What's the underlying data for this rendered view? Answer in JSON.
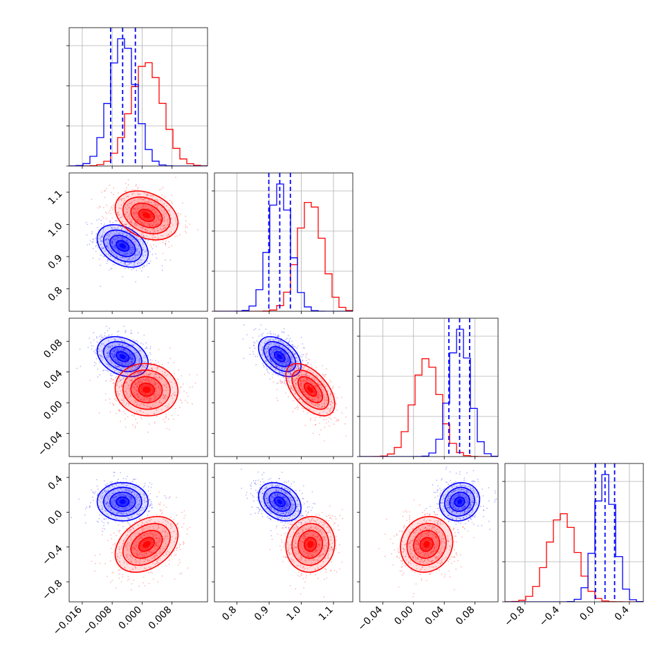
{
  "chart_data": {
    "type": "corner",
    "title": "",
    "parameters": [
      {
        "lim": [
          -0.0195,
          0.0175
        ],
        "ticks": [
          -0.016,
          -0.008,
          0.0,
          0.008
        ],
        "tick_labels": [
          "−0.016",
          "−0.008",
          "0.000",
          "0.008"
        ]
      },
      {
        "lim": [
          0.73,
          1.16
        ],
        "ticks": [
          0.8,
          0.9,
          1.0,
          1.1
        ],
        "tick_labels": [
          "0.8",
          "0.9",
          "1.0",
          "1.1"
        ]
      },
      {
        "lim": [
          -0.07,
          0.11
        ],
        "ticks": [
          -0.04,
          0.0,
          0.04,
          0.08
        ],
        "tick_labels": [
          "−0.04",
          "0.00",
          "0.04",
          "0.08"
        ]
      },
      {
        "lim": [
          -1.03,
          0.56
        ],
        "ticks": [
          -0.8,
          -0.4,
          0.0,
          0.4
        ],
        "tick_labels": [
          "−0.8",
          "−0.4",
          "0.0",
          "0.4"
        ]
      }
    ],
    "series": [
      {
        "color": "#0000ff",
        "mean": [
          -0.0052,
          0.933,
          0.06,
          0.12
        ],
        "std": [
          0.0034,
          0.033,
          0.013,
          0.11
        ],
        "correlation": [
          [
            1.0,
            -0.35,
            -0.3,
            0.0
          ],
          [
            -0.35,
            1.0,
            -0.45,
            -0.3
          ],
          [
            -0.3,
            -0.45,
            1.0,
            0.1
          ],
          [
            0.0,
            -0.3,
            0.1,
            1.0
          ]
        ],
        "quantile_lines": [
          [
            -0.0084,
            -0.0052,
            -0.0018
          ],
          [
            0.899,
            0.933,
            0.966
          ],
          [
            0.046,
            0.06,
            0.073
          ],
          [
            0.01,
            0.12,
            0.23
          ]
        ]
      },
      {
        "color": "#ff0000",
        "mean": [
          0.0012,
          1.028,
          0.017,
          -0.37
        ],
        "std": [
          0.0042,
          0.038,
          0.017,
          0.16
        ],
        "correlation": [
          [
            1.0,
            -0.3,
            -0.05,
            0.35
          ],
          [
            -0.3,
            1.0,
            -0.55,
            0.05
          ],
          [
            -0.05,
            -0.55,
            1.0,
            0.1
          ],
          [
            0.35,
            0.05,
            0.1,
            1.0
          ]
        ],
        "quantile_lines": []
      }
    ],
    "contour_levels_sigma": [
      0.5,
      1.0,
      1.5,
      2.0
    ],
    "scatter_points_per_series": 600,
    "grid": true,
    "legend": "none"
  }
}
